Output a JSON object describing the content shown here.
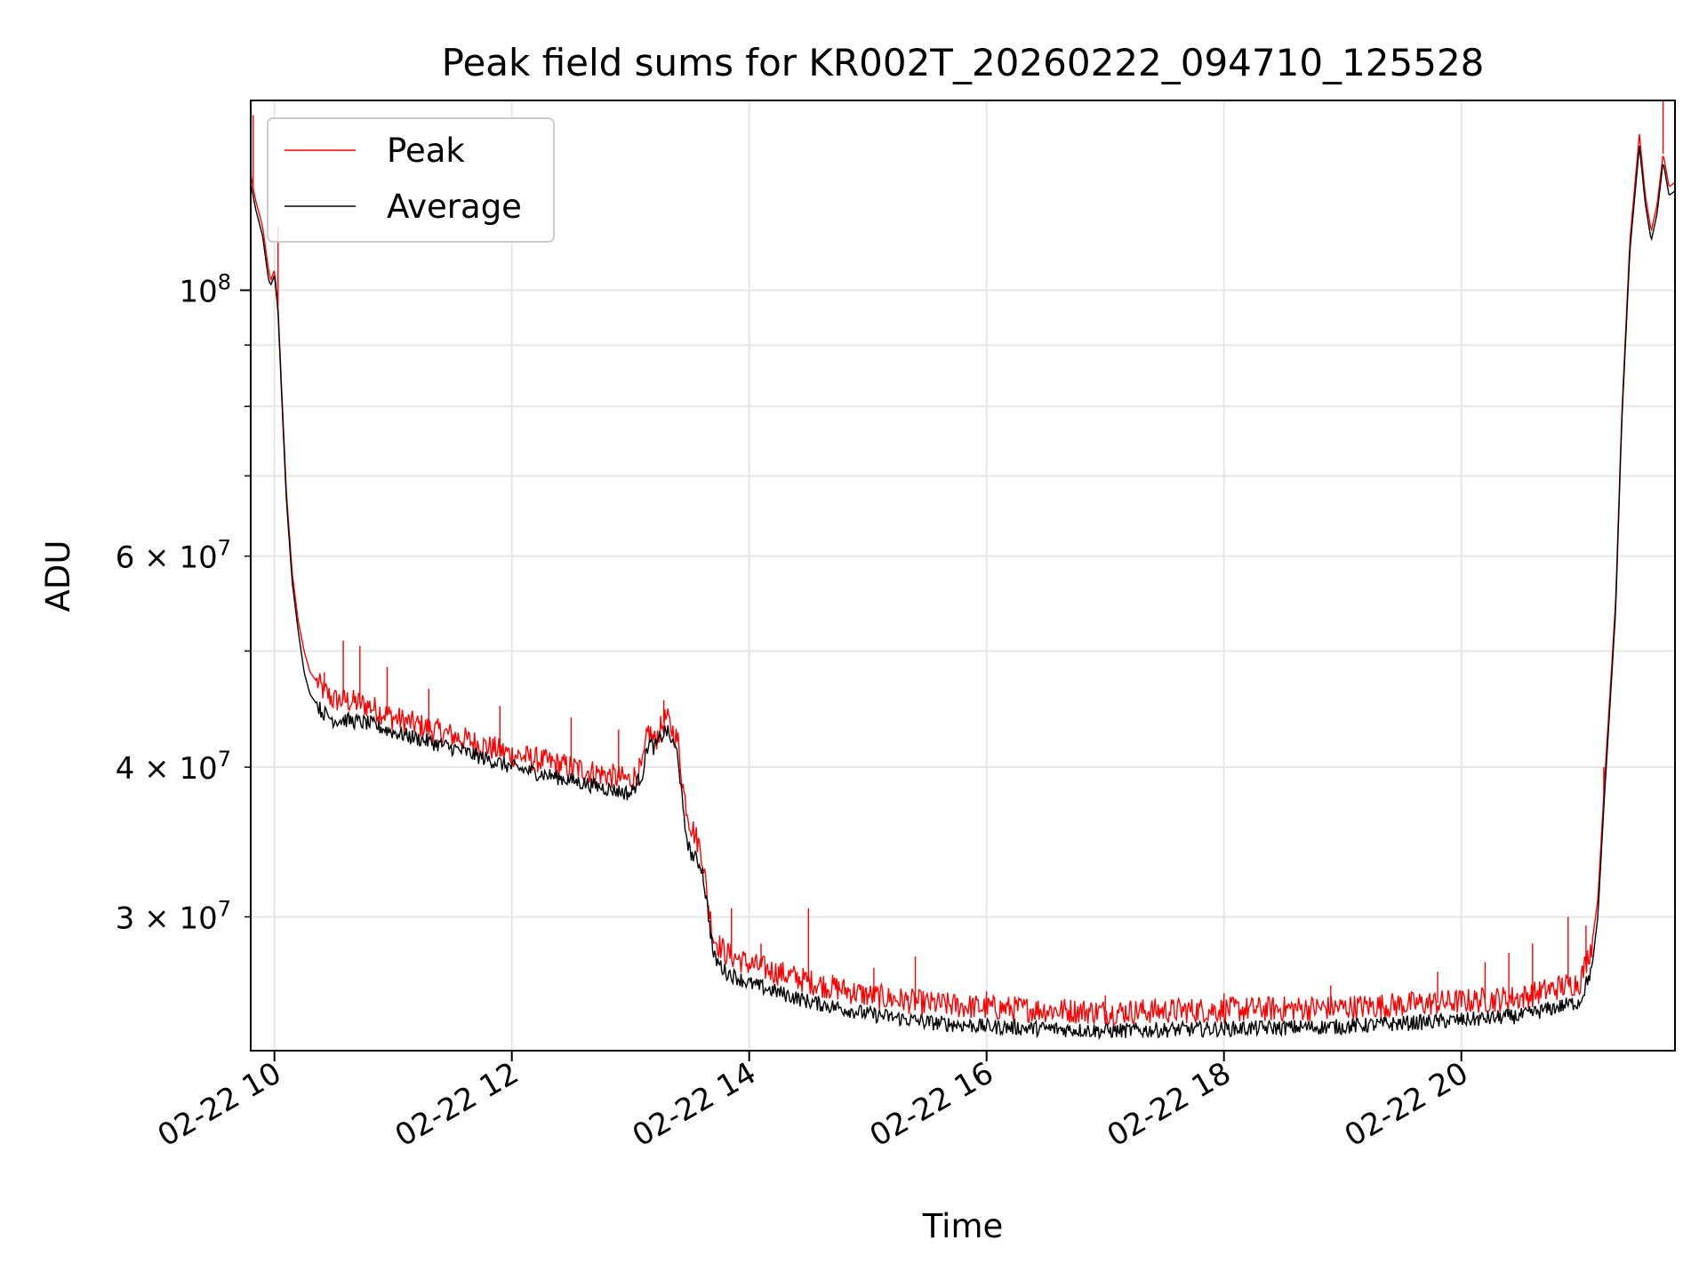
{
  "chart_data": {
    "type": "line",
    "title": "Peak field sums for KR002T_20260222_094710_125528",
    "xlabel": "Time",
    "ylabel": "ADU",
    "yscale": "log",
    "ylim": [
      23200000,
      144000000
    ],
    "xlim_hours": [
      9.8,
      21.8
    ],
    "grid": true,
    "legend_position": "upper-left",
    "x_ticks": [
      {
        "hour": 10,
        "label": "02-22 10"
      },
      {
        "hour": 12,
        "label": "02-22 12"
      },
      {
        "hour": 14,
        "label": "02-22 14"
      },
      {
        "hour": 16,
        "label": "02-22 16"
      },
      {
        "hour": 18,
        "label": "02-22 18"
      },
      {
        "hour": 20,
        "label": "02-22 20"
      }
    ],
    "y_major_ticks": [
      {
        "value": 100000000,
        "base": "10",
        "exp": "8"
      }
    ],
    "y_minor_ticks": [
      {
        "value": 30000000,
        "mant": "3",
        "exp": "7"
      },
      {
        "value": 40000000,
        "mant": "4",
        "exp": "7"
      },
      {
        "value": 60000000,
        "mant": "6",
        "exp": "7"
      }
    ],
    "y_minor_unlabeled": [
      50000000,
      70000000,
      80000000,
      90000000
    ],
    "series": [
      {
        "name": "Peak",
        "color": "#ff0000",
        "x": [
          9.8,
          9.82,
          9.84,
          9.9,
          9.95,
          9.97,
          10.0,
          10.03,
          10.06,
          10.1,
          10.15,
          10.2,
          10.25,
          10.3,
          10.4,
          10.5,
          10.6,
          10.8,
          11.0,
          11.5,
          12.0,
          12.5,
          13.0,
          13.1,
          13.15,
          13.2,
          13.3,
          13.4,
          13.45,
          13.5,
          13.55,
          13.6,
          13.65,
          13.7,
          13.8,
          14.0,
          14.5,
          15.0,
          15.5,
          16.0,
          17.0,
          18.0,
          19.0,
          20.0,
          20.5,
          21.0,
          21.1,
          21.15,
          21.2,
          21.3,
          21.35,
          21.42,
          21.5,
          21.55,
          21.6,
          21.65,
          21.7,
          21.75,
          21.8
        ],
        "values": [
          125000000,
          122000000,
          119000000,
          113000000,
          104000000,
          102000000,
          104000000,
          97000000,
          83000000,
          68000000,
          58000000,
          53000000,
          50000000,
          48000000,
          46500000,
          45500000,
          45500000,
          45000000,
          44000000,
          42500000,
          41000000,
          40000000,
          39000000,
          40000000,
          43000000,
          42000000,
          44000000,
          42000000,
          38000000,
          36000000,
          35000000,
          34000000,
          31000000,
          28800000,
          28000000,
          27400000,
          26500000,
          25800000,
          25400000,
          25200000,
          25000000,
          25100000,
          25200000,
          25500000,
          25700000,
          26500000,
          28500000,
          31000000,
          38000000,
          55000000,
          78000000,
          110000000,
          135000000,
          120000000,
          112000000,
          118000000,
          130000000,
          122000000,
          123000000
        ],
        "spikes": [
          {
            "hour": 9.82,
            "value": 140000000
          },
          {
            "hour": 10.03,
            "value": 113000000
          },
          {
            "hour": 10.42,
            "value": 48000000
          },
          {
            "hour": 10.58,
            "value": 51000000
          },
          {
            "hour": 10.72,
            "value": 50500000
          },
          {
            "hour": 10.95,
            "value": 48500000
          },
          {
            "hour": 11.3,
            "value": 46500000
          },
          {
            "hour": 11.9,
            "value": 45000000
          },
          {
            "hour": 12.5,
            "value": 44000000
          },
          {
            "hour": 12.9,
            "value": 43000000
          },
          {
            "hour": 13.28,
            "value": 45500000
          },
          {
            "hour": 13.85,
            "value": 30500000
          },
          {
            "hour": 14.1,
            "value": 28500000
          },
          {
            "hour": 14.5,
            "value": 30500000
          },
          {
            "hour": 15.05,
            "value": 27200000
          },
          {
            "hour": 15.4,
            "value": 27800000
          },
          {
            "hour": 16.0,
            "value": 26000000
          },
          {
            "hour": 17.0,
            "value": 25800000
          },
          {
            "hour": 18.0,
            "value": 25900000
          },
          {
            "hour": 18.9,
            "value": 26300000
          },
          {
            "hour": 19.8,
            "value": 27000000
          },
          {
            "hour": 20.2,
            "value": 27500000
          },
          {
            "hour": 20.4,
            "value": 28000000
          },
          {
            "hour": 20.6,
            "value": 28500000
          },
          {
            "hour": 20.9,
            "value": 30000000
          },
          {
            "hour": 21.05,
            "value": 29500000
          },
          {
            "hour": 21.2,
            "value": 40000000
          },
          {
            "hour": 21.7,
            "value": 145000000
          }
        ]
      },
      {
        "name": "Average",
        "color": "#000000",
        "x": [
          9.8,
          9.82,
          9.84,
          9.9,
          9.95,
          9.97,
          10.0,
          10.03,
          10.06,
          10.1,
          10.15,
          10.2,
          10.25,
          10.3,
          10.4,
          10.5,
          10.6,
          10.8,
          11.0,
          11.5,
          12.0,
          12.5,
          13.0,
          13.1,
          13.15,
          13.2,
          13.3,
          13.4,
          13.45,
          13.5,
          13.55,
          13.6,
          13.65,
          13.7,
          13.8,
          14.0,
          14.5,
          15.0,
          15.5,
          16.0,
          17.0,
          18.0,
          19.0,
          20.0,
          20.5,
          21.0,
          21.1,
          21.15,
          21.2,
          21.3,
          21.35,
          21.42,
          21.5,
          21.55,
          21.6,
          21.65,
          21.7,
          21.75,
          21.8
        ],
        "values": [
          123000000,
          120000000,
          117000000,
          111000000,
          102000000,
          101000000,
          103000000,
          96000000,
          82000000,
          67000000,
          57000000,
          52000000,
          48000000,
          46000000,
          44500000,
          43800000,
          43800000,
          43500000,
          42800000,
          41500000,
          40000000,
          39000000,
          38000000,
          39500000,
          42000000,
          41500000,
          43000000,
          41000000,
          36000000,
          34000000,
          33500000,
          33000000,
          30500000,
          27800000,
          27000000,
          26400000,
          25500000,
          24900000,
          24500000,
          24300000,
          24100000,
          24200000,
          24300000,
          24600000,
          24800000,
          25500000,
          27200000,
          30000000,
          37000000,
          54000000,
          77000000,
          108000000,
          132000000,
          118000000,
          110000000,
          116000000,
          128000000,
          120000000,
          121000000
        ]
      }
    ]
  }
}
